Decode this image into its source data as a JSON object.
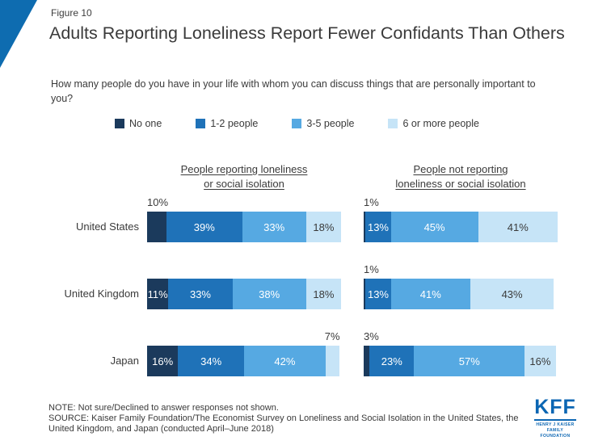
{
  "figure_label": "Figure 10",
  "title": "Adults Reporting Loneliness Report Fewer Confidants Than Others",
  "question": "How many people do you have in your life with whom you can discuss things that are personally important to you?",
  "legend": [
    {
      "label": "No one",
      "color": "#1B3A5C"
    },
    {
      "label": "1-2 people",
      "color": "#1F72B8"
    },
    {
      "label": "3-5 people",
      "color": "#56A9E2"
    },
    {
      "label": "6 or more people",
      "color": "#C6E4F7"
    }
  ],
  "chart_data": {
    "type": "bar",
    "orientation": "horizontal",
    "stacked": true,
    "unit": "%",
    "categories": [
      "United States",
      "United Kingdom",
      "Japan"
    ],
    "series_labels": [
      "No one",
      "1-2 people",
      "3-5 people",
      "6 or more people"
    ],
    "panels": [
      {
        "title": "People reporting loneliness or social isolation",
        "title_lines": [
          "People reporting loneliness",
          "or social isolation"
        ],
        "rows": [
          {
            "category": "United States",
            "values": [
              10,
              39,
              33,
              18
            ]
          },
          {
            "category": "United Kingdom",
            "values": [
              11,
              33,
              38,
              18
            ]
          },
          {
            "category": "Japan",
            "values": [
              16,
              34,
              42,
              7
            ]
          }
        ]
      },
      {
        "title": "People not reporting loneliness or social isolation",
        "title_lines": [
          "People not reporting",
          "loneliness or social isolation"
        ],
        "rows": [
          {
            "category": "United States",
            "values": [
              1,
              13,
              45,
              41
            ]
          },
          {
            "category": "United Kingdom",
            "values": [
              1,
              13,
              41,
              43
            ]
          },
          {
            "category": "Japan",
            "values": [
              3,
              23,
              57,
              16
            ]
          }
        ]
      }
    ]
  },
  "note": "NOTE: Not sure/Declined to answer responses not shown.",
  "source": "SOURCE: Kaiser Family Foundation/The Economist Survey on Loneliness and Social Isolation in the United States, the United Kingdom, and Japan (conducted April–June 2018)",
  "logo": {
    "text": "KFF",
    "tagline_line1": "HENRY J KAISER",
    "tagline_line2": "FAMILY FOUNDATION"
  },
  "colors": {
    "accent_corner": "#0E6CB0",
    "logo_blue": "#0B66B3",
    "text": "#3a3a3a"
  }
}
